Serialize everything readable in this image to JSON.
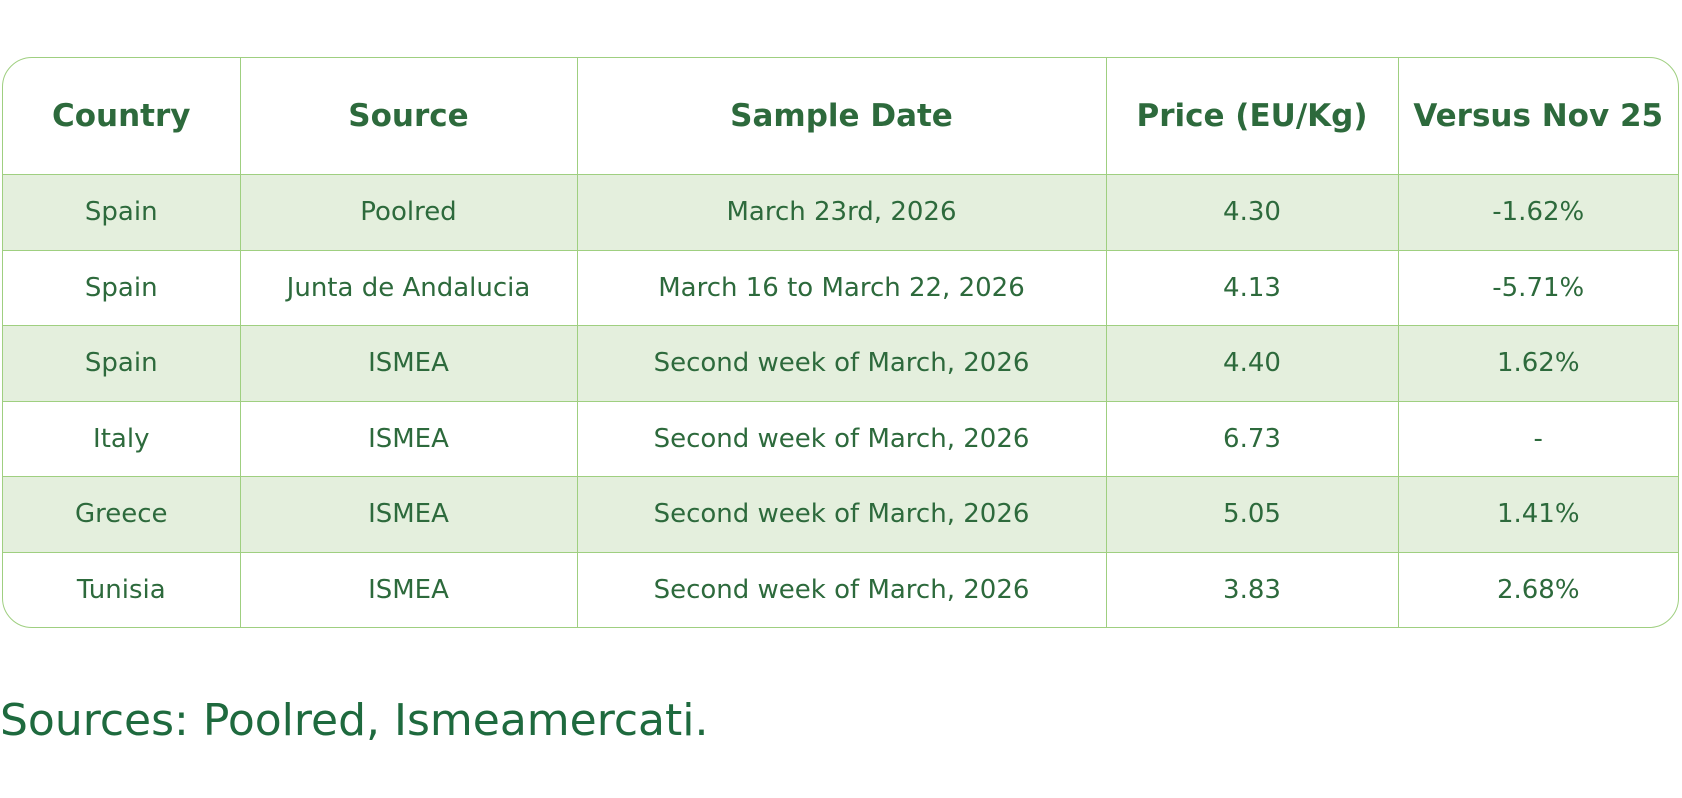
{
  "table": {
    "header": [
      "Country",
      "Source",
      "Sample Date",
      "Price (EU/Kg)",
      "Versus Nov 25"
    ],
    "rows": [
      [
        "Spain",
        "Poolred",
        "March 23rd, 2026",
        "4.30",
        "-1.62%"
      ],
      [
        "Spain",
        "Junta de Andalucia",
        "March 16 to March 22, 2026",
        "4.13",
        "-5.71%"
      ],
      [
        "Spain",
        "ISMEA",
        "Second week of March, 2026",
        "4.40",
        "1.62%"
      ],
      [
        "Italy",
        "ISMEA",
        "Second week of March, 2026",
        "6.73",
        "-"
      ],
      [
        "Greece",
        "ISMEA",
        "Second week of March, 2026",
        "5.05",
        "1.41%"
      ],
      [
        "Tunisia",
        "ISMEA",
        "Second week of March, 2026",
        "3.83",
        "2.68%"
      ]
    ]
  },
  "footer": {
    "note": "Sources: Poolred, Ismeamercati."
  }
}
